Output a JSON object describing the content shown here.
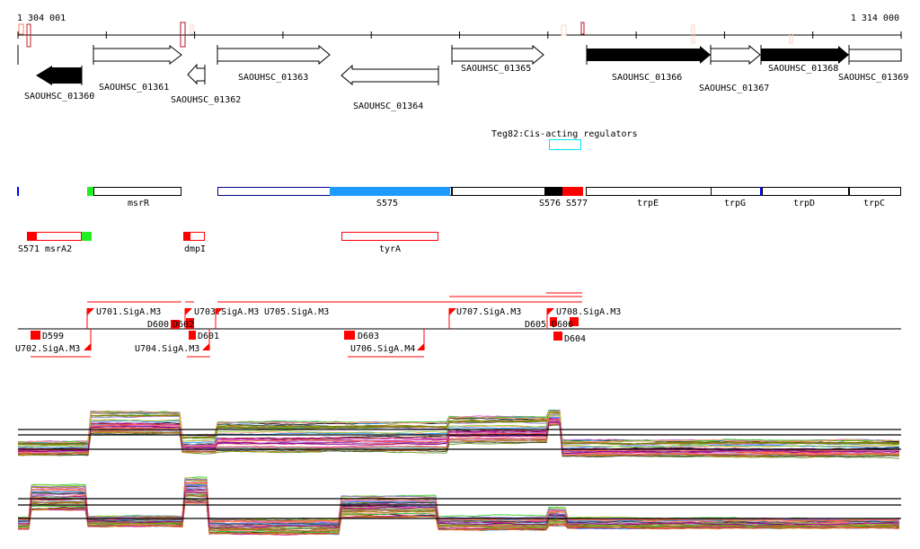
{
  "ruler": {
    "start_label": "1 304 001",
    "end_label": "1 314 000"
  },
  "genes": [
    {
      "label": "SAOUHSC_01360",
      "strand": "-",
      "filled": true
    },
    {
      "label": "SAOUHSC_01361",
      "strand": "+",
      "filled": false
    },
    {
      "label": "SAOUHSC_01362",
      "strand": "-",
      "filled": false
    },
    {
      "label": "SAOUHSC_01363",
      "strand": "+",
      "filled": false
    },
    {
      "label": "SAOUHSC_01364",
      "strand": "-",
      "filled": false
    },
    {
      "label": "SAOUHSC_01365",
      "strand": "+",
      "filled": false
    },
    {
      "label": "SAOUHSC_01366",
      "strand": "+",
      "filled": true
    },
    {
      "label": "SAOUHSC_01367",
      "strand": "+",
      "filled": false
    },
    {
      "label": "SAOUHSC_01368",
      "strand": "+",
      "filled": true
    },
    {
      "label": "SAOUHSC_01369",
      "strand": "+",
      "filled": false
    }
  ],
  "regulator": {
    "label": "Teg82:Cis-acting regulators"
  },
  "features_row1": [
    "msrR",
    "S575",
    "S576",
    "S577",
    "trpE",
    "trpG",
    "trpD",
    "trpC"
  ],
  "features_row2": [
    "S571",
    "msrA2",
    "dmpI",
    "tyrA"
  ],
  "promoters_top": [
    "U701.SigA.M3",
    "D600",
    "D602",
    "U703.SigA.M3",
    "U705.SigA.M3",
    "U707.SigA.M3",
    "D605",
    "D606",
    "U708.SigA.M3"
  ],
  "promoters_bottom": [
    "D599",
    "U702.SigA.M3",
    "U704.SigA.M3",
    "D601",
    "D603",
    "U706.SigA.M4",
    "D604"
  ],
  "colors": {
    "accent_red": "#ff0000",
    "dark_red": "#b01020",
    "cyan": "#00e5ff",
    "blue": "#1e9bff",
    "green": "#22ee22"
  },
  "expression_palette": [
    "#d2691e",
    "#9acd32",
    "#ff6347",
    "#8b008b",
    "#87ceeb",
    "#b8860b",
    "#ff69b4",
    "#6b8e23",
    "#cd5c5c",
    "#9370db",
    "#32cd32",
    "#a0522d",
    "#1e90ff",
    "#c71585",
    "#808000",
    "#ffa07a",
    "#da70d6",
    "#2f4f4f"
  ]
}
